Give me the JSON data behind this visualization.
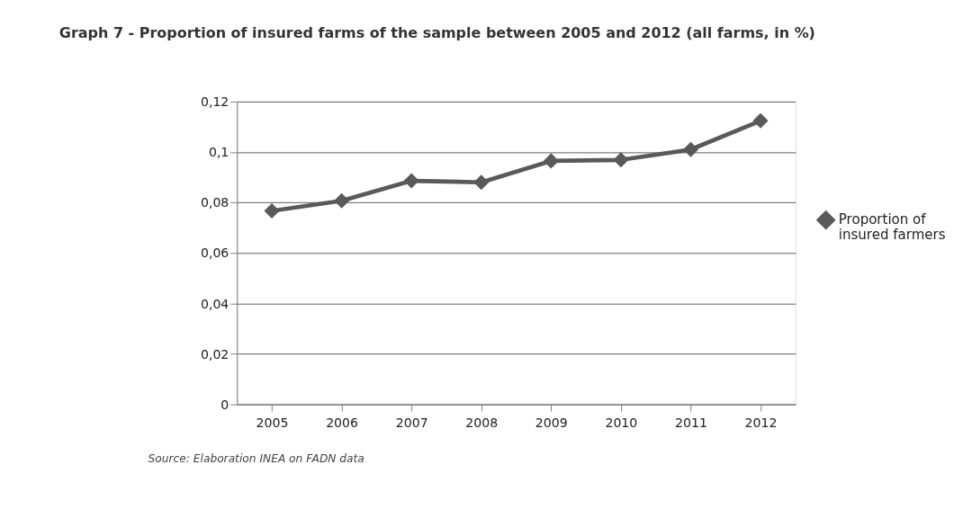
{
  "chart_data": {
    "type": "line",
    "title": "Graph 7 - Proportion of insured farms of the sample between 2005 and 2012 (all farms, in %)",
    "categories": [
      "2005",
      "2006",
      "2007",
      "2008",
      "2009",
      "2010",
      "2011",
      "2012"
    ],
    "series": [
      {
        "name": "Proportion of insured farmers",
        "color": "#595959",
        "values": [
          0.0767,
          0.0807,
          0.0886,
          0.088,
          0.0965,
          0.0969,
          0.101,
          0.1124
        ]
      }
    ],
    "ylim": [
      0,
      0.12
    ],
    "yticks": [
      0,
      {
        "value": 0.02,
        "label": "0,02"
      },
      {
        "value": 0.04,
        "label": "0,04"
      },
      {
        "value": 0.06,
        "label": "0,06"
      },
      {
        "value": 0.08,
        "label": "0,08"
      },
      {
        "value": 0.1,
        "label": "0,1"
      },
      {
        "value": 0.12,
        "label": "0,12"
      }
    ],
    "grid": "y",
    "legend": "right",
    "marker": "diamond",
    "line_style": "solid",
    "annotations": [
      "Source: Elaboration INEA on FADN data"
    ]
  }
}
